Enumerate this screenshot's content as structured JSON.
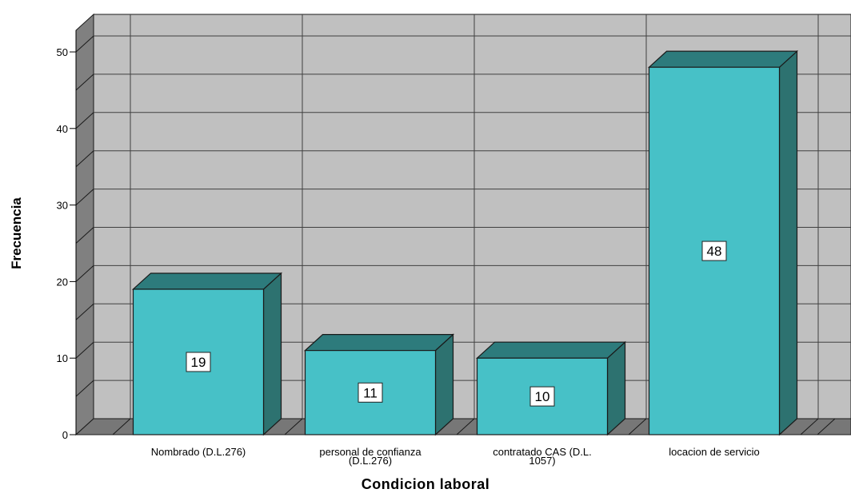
{
  "chart_data": {
    "type": "bar",
    "categories": [
      [
        "Nombrado (D.L.276)"
      ],
      [
        "personal de confianza",
        "(D.L.276)"
      ],
      [
        "contratado CAS (D.L.",
        "1057)"
      ],
      [
        "locacion de servicio"
      ]
    ],
    "values": [
      19,
      11,
      10,
      48
    ],
    "data_labels": [
      "19",
      "11",
      "10",
      "48"
    ],
    "xlabel": "Condicion laboral",
    "ylabel": "Frecuencia",
    "ylim": [
      0,
      50
    ],
    "yticks": [
      "0",
      "10",
      "20",
      "30",
      "40",
      "50"
    ],
    "grid": true,
    "style": "3d",
    "colors": {
      "bar_front": "#47c1c7",
      "bar_top": "#2d7b7c",
      "bar_side": "#2d7270",
      "wall": "#c0c0c0",
      "left_wall": "#808080",
      "floor": "#777777",
      "grid_line": "#404040"
    }
  }
}
